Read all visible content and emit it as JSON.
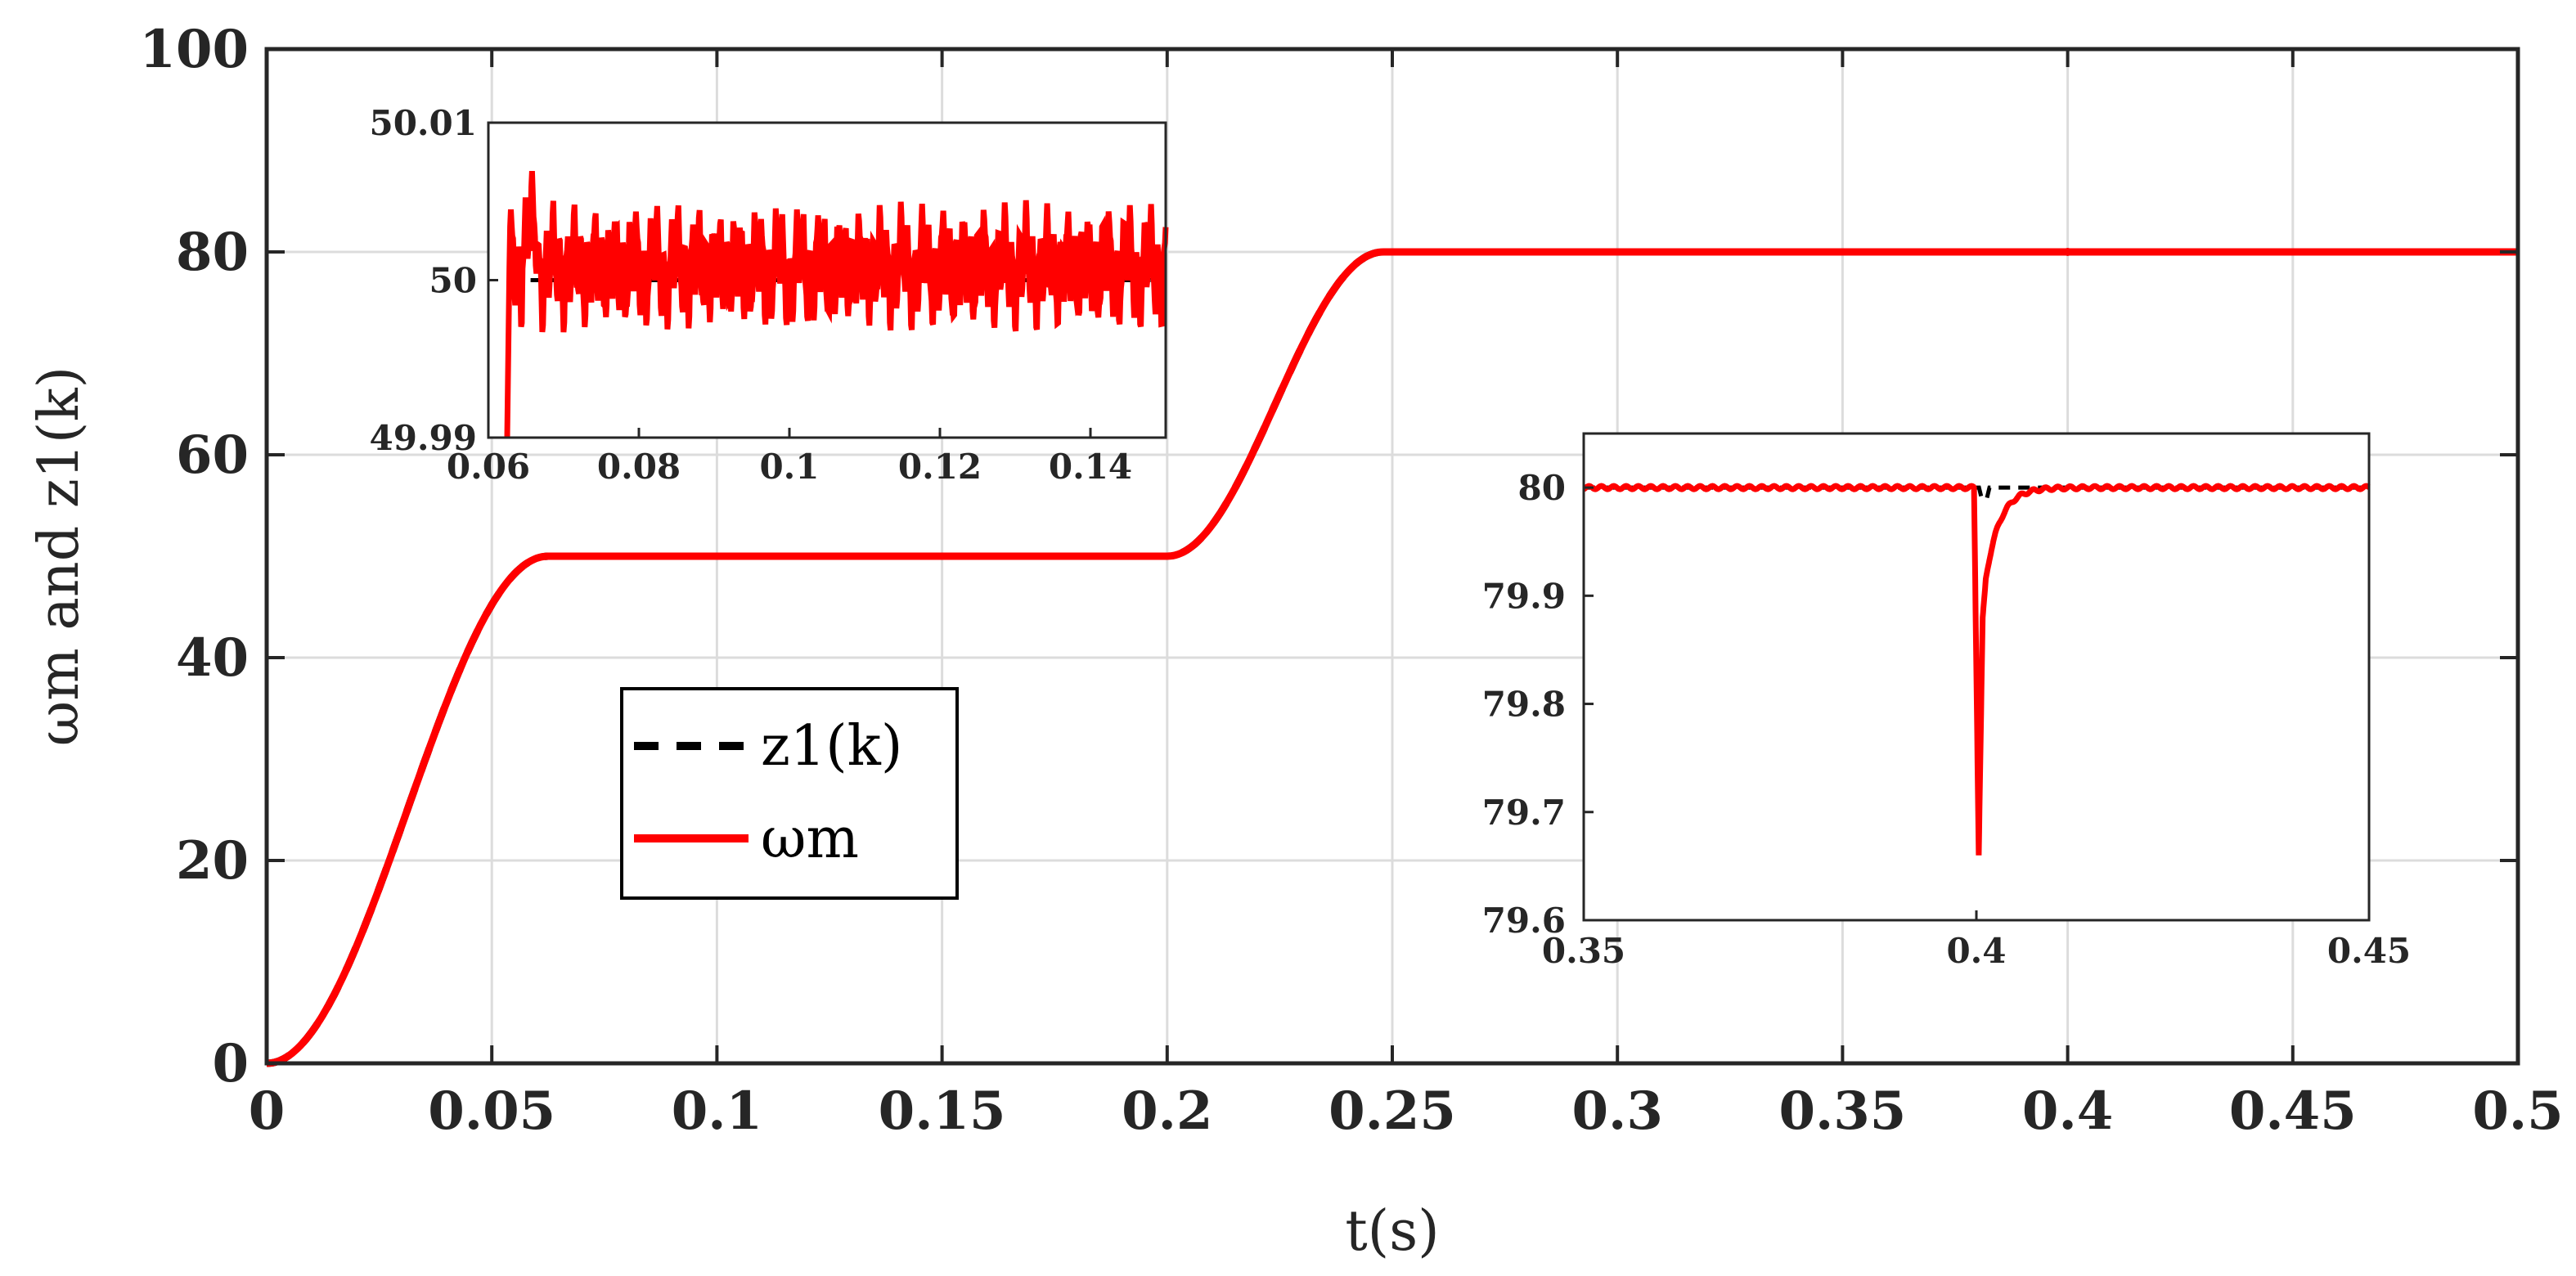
{
  "chart_data": [
    {
      "type": "line",
      "xlabel": "t(s)",
      "ylabel": "ωm and z1(k)",
      "xlim": [
        0,
        0.5
      ],
      "ylim": [
        0,
        100
      ],
      "xticks": [
        "0",
        "0.05",
        "0.1",
        "0.15",
        "0.2",
        "0.25",
        "0.3",
        "0.35",
        "0.4",
        "0.45",
        "0.5"
      ],
      "yticks": [
        "0",
        "20",
        "40",
        "60",
        "80",
        "100"
      ],
      "grid": true,
      "legend": {
        "placement": "center-left",
        "entries": [
          {
            "label": "z1(k)",
            "style": "dashed",
            "color": "#000000"
          },
          {
            "label": "ωm",
            "style": "solid",
            "color": "#ff0000"
          }
        ]
      },
      "series": [
        {
          "name": "z1(k)",
          "color": "#000000",
          "x": [
            0,
            0.01,
            0.02,
            0.03,
            0.04,
            0.05,
            0.062,
            0.2,
            0.21,
            0.22,
            0.23,
            0.24,
            0.248,
            0.5
          ],
          "values": [
            0,
            3,
            11,
            22,
            35,
            45,
            50,
            50,
            53,
            60,
            70,
            77,
            80,
            80
          ]
        },
        {
          "name": "ωm",
          "color": "#ff0000",
          "x": [
            0,
            0.01,
            0.02,
            0.03,
            0.04,
            0.05,
            0.062,
            0.2,
            0.21,
            0.22,
            0.23,
            0.24,
            0.248,
            0.4,
            0.5
          ],
          "values": [
            0,
            3,
            11,
            22,
            35,
            45,
            50,
            50,
            53,
            60,
            70,
            77,
            80,
            79.66,
            80
          ]
        }
      ]
    },
    {
      "type": "line",
      "name": "inset-top-left",
      "xlim": [
        0.06,
        0.15
      ],
      "ylim": [
        49.99,
        50.01
      ],
      "xticks": [
        "0.06",
        "0.08",
        "0.1",
        "0.12",
        "0.14"
      ],
      "yticks": [
        "49.99",
        "50",
        "50.01"
      ],
      "grid": false,
      "series": [
        {
          "name": "z1(k)",
          "color": "#000000",
          "x": [
            0.062,
            0.15
          ],
          "values": [
            50,
            50
          ]
        },
        {
          "name": "ωm",
          "color": "#ff0000",
          "x": [
            0.062,
            0.063,
            0.066,
            0.15
          ],
          "values": [
            49.99,
            50.001,
            50.007,
            50.003
          ]
        }
      ]
    },
    {
      "type": "line",
      "name": "inset-bottom-right",
      "xlim": [
        0.35,
        0.45
      ],
      "ylim": [
        79.6,
        80.05
      ],
      "xticks": [
        "0.35",
        "0.4",
        "0.45"
      ],
      "yticks": [
        "79.6",
        "79.7",
        "79.8",
        "79.9",
        "80"
      ],
      "grid": false,
      "series": [
        {
          "name": "z1(k)",
          "color": "#000000",
          "x": [
            0.35,
            0.4,
            0.401,
            0.404,
            0.45
          ],
          "values": [
            80,
            80,
            79.99,
            80,
            80
          ]
        },
        {
          "name": "ωm",
          "color": "#ff0000",
          "x": [
            0.35,
            0.3998,
            0.4004,
            0.4008,
            0.402,
            0.405,
            0.41,
            0.45
          ],
          "values": [
            80,
            80,
            79.66,
            79.88,
            79.92,
            79.98,
            80,
            80
          ]
        }
      ]
    }
  ]
}
